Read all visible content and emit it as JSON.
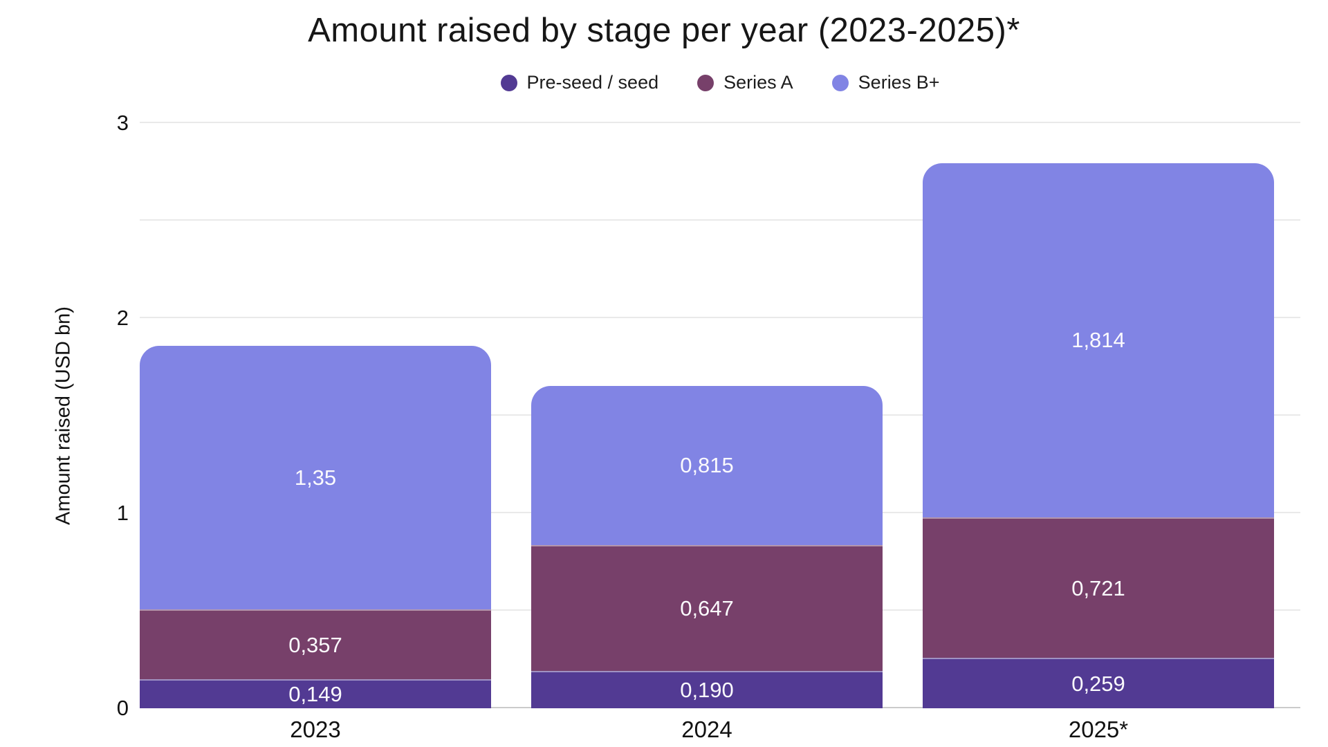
{
  "title": "Amount raised by stage per year (2023-2025)*",
  "legend": {
    "items": [
      "Pre-seed / seed",
      "Series A",
      "Series B+"
    ]
  },
  "chart_data": {
    "type": "bar",
    "stacked": true,
    "title": "Amount raised by stage per year (2023-2025)*",
    "categories": [
      "2023",
      "2024",
      "2025*"
    ],
    "series": [
      {
        "name": "Pre-seed / seed",
        "color": "#523A93",
        "values": [
          0.149,
          0.19,
          0.259
        ],
        "labels": [
          "0,149",
          "0,190",
          "0,259"
        ]
      },
      {
        "name": "Series A",
        "color": "#77406A",
        "values": [
          0.357,
          0.647,
          0.721
        ],
        "labels": [
          "0,357",
          "0,647",
          "0,721"
        ]
      },
      {
        "name": "Series B+",
        "color": "#8184E4",
        "values": [
          1.35,
          0.815,
          1.814
        ],
        "labels": [
          "1,35",
          "0,815",
          "1,814"
        ]
      }
    ],
    "xlabel": "",
    "ylabel": "Amount raised (USD bn)",
    "ylim": [
      0,
      3
    ],
    "yticks": [
      0,
      1,
      2,
      3
    ],
    "grid_step": 0.5,
    "grid_on": true,
    "legend_position": "top",
    "value_label_color": "#fbfafd",
    "gridline_color": "#e9e9e9",
    "baseline_color": "#cbcbcb"
  }
}
